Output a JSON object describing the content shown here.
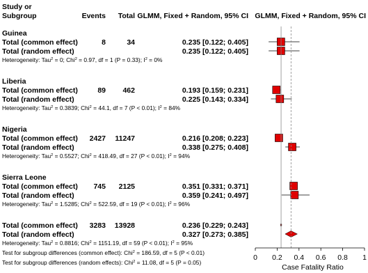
{
  "header": {
    "study_line1": "Study or",
    "study_line2": "Subgroup",
    "events": "Events",
    "total": "Total",
    "ci_col": "GLMM, Fixed + Random, 95% CI",
    "plot_col": "GLMM, Fixed + Random, 95% CI"
  },
  "rows": [
    {
      "kind": "group",
      "label": "Guinea"
    },
    {
      "kind": "common",
      "label": "Total (common effect)",
      "events": "8",
      "total": "34",
      "ci_text": "0.235 [0.122; 0.405]",
      "est": 0.235,
      "lo": 0.122,
      "hi": 0.405
    },
    {
      "kind": "random",
      "label": "Total (random effect)",
      "ci_text": "0.235 [0.122; 0.405]",
      "est": 0.235,
      "lo": 0.122,
      "hi": 0.405
    },
    {
      "kind": "het",
      "p1": "Heterogeneity: Tau",
      "p2": " = 0; Chi",
      "p3": " = 0.97, df = 1 (P = 0.33); I",
      "p4": " = 0%"
    },
    {
      "kind": "group",
      "label": "Liberia"
    },
    {
      "kind": "common",
      "label": "Total (common effect)",
      "events": "89",
      "total": "462",
      "ci_text": "0.193 [0.159; 0.231]",
      "est": 0.193,
      "lo": 0.159,
      "hi": 0.231
    },
    {
      "kind": "random",
      "label": "Total (random effect)",
      "ci_text": "0.225 [0.143; 0.334]",
      "est": 0.225,
      "lo": 0.143,
      "hi": 0.334
    },
    {
      "kind": "het",
      "p1": "Heterogeneity: Tau",
      "p2": " = 0.3839; Chi",
      "p3": " = 44.1, df = 7 (P < 0.01); I",
      "p4": " = 84%"
    },
    {
      "kind": "group",
      "label": "Nigeria"
    },
    {
      "kind": "common",
      "label": "Total (common effect)",
      "events": "2427",
      "total": "11247",
      "ci_text": "0.216 [0.208; 0.223]",
      "est": 0.216,
      "lo": 0.208,
      "hi": 0.223
    },
    {
      "kind": "random",
      "label": "Total (random effect)",
      "ci_text": "0.338 [0.275; 0.408]",
      "est": 0.338,
      "lo": 0.275,
      "hi": 0.408
    },
    {
      "kind": "het",
      "p1": "Heterogeneity: Tau",
      "p2": " = 0.5527; Chi",
      "p3": " = 418.49, df = 27 (P < 0.01); I",
      "p4": " = 94%"
    },
    {
      "kind": "group",
      "label": "Sierra Leone"
    },
    {
      "kind": "common",
      "label": "Total (common effect)",
      "events": "745",
      "total": "2125",
      "ci_text": "0.351 [0.331; 0.371]",
      "est": 0.351,
      "lo": 0.331,
      "hi": 0.371
    },
    {
      "kind": "random",
      "label": "Total (random effect)",
      "ci_text": "0.359 [0.241; 0.497]",
      "est": 0.359,
      "lo": 0.241,
      "hi": 0.497
    },
    {
      "kind": "het",
      "p1": "Heterogeneity: Tau",
      "p2": " = 1.5285; Chi",
      "p3": " = 522.59, df = 19 (P < 0.01); I",
      "p4": " = 96%"
    }
  ],
  "overall": {
    "common": {
      "label": "Total (common effect)",
      "events": "3283",
      "total": "13928",
      "ci_text": "0.236 [0.229; 0.243]",
      "est": 0.236,
      "lo": 0.229,
      "hi": 0.243
    },
    "random": {
      "label": "Total (random effect)",
      "ci_text": "0.327 [0.273; 0.385]",
      "est": 0.327,
      "lo": 0.273,
      "hi": 0.385
    },
    "het": {
      "p1": "Heterogeneity: Tau",
      "p2": " = 0.8816; Chi",
      "p3": " = 1151.19, df = 59 (P < 0.01); I",
      "p4": " = 95%"
    },
    "test_common": {
      "p1": "Test for subgroup differences (common effect): Chi",
      "p2": " = 186.59, df = 5 (P < 0.01)"
    },
    "test_random": {
      "p1": "Test for subgroup differences (random effects): Chi",
      "p2": " = 11.08, df = 5 (P = 0.05)"
    }
  },
  "chart_data": {
    "type": "scatter",
    "title": "GLMM, Fixed + Random, 95% CI",
    "xlabel": "Case Fatality Ratio",
    "xlim": [
      0,
      1
    ],
    "xticks": [
      "0",
      "0.2",
      "0.4",
      "0.6",
      "0.8",
      "1"
    ],
    "xtick_values": [
      0,
      0.2,
      0.4,
      0.6,
      0.8,
      1
    ],
    "ref_common": 0.236,
    "ref_random": 0.327,
    "colors": {
      "marker": "#e00000",
      "diamond": "#e00000",
      "ref_line": "#888888"
    }
  }
}
